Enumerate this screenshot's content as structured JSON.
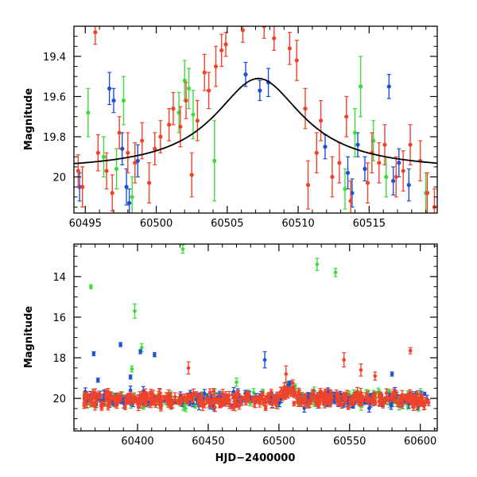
{
  "chart_data": [
    {
      "type": "scatter",
      "title": "",
      "xlabel": "",
      "ylabel": "Magnitude",
      "xlim": [
        60494.2,
        60519.8
      ],
      "ylim": [
        19.25,
        20.18
      ],
      "y_inverted": true,
      "xticks": [
        60495,
        60500,
        60505,
        60510,
        60515
      ],
      "xtick_labels": [
        "60495",
        "60500",
        "60505",
        "60510",
        "60515"
      ],
      "yticks": [
        19.4,
        19.6,
        19.8,
        20.0
      ],
      "ytick_labels": [
        "19.4",
        "19.6",
        "19.8",
        "20"
      ],
      "model_curve": {
        "color": "#000000",
        "peak_x": 60507.2,
        "peak_y": 19.51,
        "baseline_y": 19.97,
        "width": 3.8,
        "points": [
          {
            "x": 60494.2,
            "y": 19.947
          },
          {
            "x": 60495.5,
            "y": 19.935
          },
          {
            "x": 60497.0,
            "y": 19.914
          },
          {
            "x": 60498.5,
            "y": 19.884
          },
          {
            "x": 60500.0,
            "y": 19.839
          },
          {
            "x": 60501.5,
            "y": 19.778
          },
          {
            "x": 60503.0,
            "y": 19.703
          },
          {
            "x": 60504.5,
            "y": 19.617
          },
          {
            "x": 60506.0,
            "y": 19.545
          },
          {
            "x": 60507.2,
            "y": 19.51
          },
          {
            "x": 60508.5,
            "y": 19.53
          },
          {
            "x": 60510.0,
            "y": 19.61
          },
          {
            "x": 60511.5,
            "y": 19.704
          },
          {
            "x": 60513.0,
            "y": 19.783
          },
          {
            "x": 60514.5,
            "y": 19.843
          },
          {
            "x": 60516.0,
            "y": 19.886
          },
          {
            "x": 60517.5,
            "y": 19.915
          },
          {
            "x": 60519.8,
            "y": 19.945
          }
        ]
      },
      "series": [
        {
          "color": "#1f4fd6",
          "points": [
            {
              "x": 60494.6,
              "y": 20.05,
              "err": 0.07
            },
            {
              "x": 60496.7,
              "y": 19.56,
              "err": 0.08
            },
            {
              "x": 60497.0,
              "y": 19.62,
              "err": 0.06
            },
            {
              "x": 60497.6,
              "y": 19.86,
              "err": 0.08
            },
            {
              "x": 60497.9,
              "y": 20.05,
              "err": 0.09
            },
            {
              "x": 60498.1,
              "y": 20.13,
              "err": 0.07
            },
            {
              "x": 60498.7,
              "y": 19.92,
              "err": 0.08
            },
            {
              "x": 60506.3,
              "y": 19.49,
              "err": 0.06
            },
            {
              "x": 60507.3,
              "y": 19.57,
              "err": 0.05
            },
            {
              "x": 60507.9,
              "y": 19.53,
              "err": 0.07
            },
            {
              "x": 60511.9,
              "y": 19.85,
              "err": 0.06
            },
            {
              "x": 60513.5,
              "y": 19.98,
              "err": 0.08
            },
            {
              "x": 60513.8,
              "y": 20.08,
              "err": 0.07
            },
            {
              "x": 60514.2,
              "y": 19.84,
              "err": 0.06
            },
            {
              "x": 60514.7,
              "y": 19.96,
              "err": 0.06
            },
            {
              "x": 60516.4,
              "y": 19.55,
              "err": 0.06
            },
            {
              "x": 60516.7,
              "y": 20.02,
              "err": 0.07
            },
            {
              "x": 60517.8,
              "y": 20.04,
              "err": 0.08
            },
            {
              "x": 60517.1,
              "y": 19.93,
              "err": 0.07
            }
          ]
        },
        {
          "color": "#3ddc3d",
          "points": [
            {
              "x": 60495.2,
              "y": 19.68,
              "err": 0.12
            },
            {
              "x": 60496.3,
              "y": 19.9,
              "err": 0.1
            },
            {
              "x": 60497.2,
              "y": 19.96,
              "err": 0.1
            },
            {
              "x": 60497.7,
              "y": 19.62,
              "err": 0.12
            },
            {
              "x": 60498.3,
              "y": 20.1,
              "err": 0.1
            },
            {
              "x": 60501.6,
              "y": 19.68,
              "err": 0.1
            },
            {
              "x": 60502.0,
              "y": 19.52,
              "err": 0.1
            },
            {
              "x": 60502.3,
              "y": 19.56,
              "err": 0.1
            },
            {
              "x": 60502.6,
              "y": 19.69,
              "err": 0.12
            },
            {
              "x": 60504.1,
              "y": 19.92,
              "err": 0.2
            },
            {
              "x": 60513.3,
              "y": 20.06,
              "err": 0.1
            },
            {
              "x": 60514.0,
              "y": 19.78,
              "err": 0.12
            },
            {
              "x": 60514.4,
              "y": 19.55,
              "err": 0.15
            },
            {
              "x": 60515.3,
              "y": 19.82,
              "err": 0.1
            },
            {
              "x": 60516.2,
              "y": 20.0,
              "err": 0.1
            },
            {
              "x": 60519.0,
              "y": 20.08,
              "err": 0.1
            }
          ]
        },
        {
          "color": "#f0432a",
          "points": [
            {
              "x": 60494.5,
              "y": 19.97,
              "err": 0.08
            },
            {
              "x": 60494.8,
              "y": 20.05,
              "err": 0.1
            },
            {
              "x": 60495.7,
              "y": 19.28,
              "err": 0.06
            },
            {
              "x": 60495.9,
              "y": 19.88,
              "err": 0.09
            },
            {
              "x": 60496.5,
              "y": 19.97,
              "err": 0.09
            },
            {
              "x": 60496.9,
              "y": 20.08,
              "err": 0.09
            },
            {
              "x": 60497.4,
              "y": 19.78,
              "err": 0.08
            },
            {
              "x": 60498.0,
              "y": 19.88,
              "err": 0.1
            },
            {
              "x": 60498.5,
              "y": 19.93,
              "err": 0.1
            },
            {
              "x": 60499.0,
              "y": 19.82,
              "err": 0.09
            },
            {
              "x": 60499.5,
              "y": 20.03,
              "err": 0.1
            },
            {
              "x": 60499.9,
              "y": 19.86,
              "err": 0.08
            },
            {
              "x": 60500.3,
              "y": 19.8,
              "err": 0.08
            },
            {
              "x": 60500.9,
              "y": 19.74,
              "err": 0.08
            },
            {
              "x": 60501.2,
              "y": 19.66,
              "err": 0.08
            },
            {
              "x": 60501.7,
              "y": 19.75,
              "err": 0.1
            },
            {
              "x": 60502.1,
              "y": 19.62,
              "err": 0.09
            },
            {
              "x": 60502.5,
              "y": 19.99,
              "err": 0.11
            },
            {
              "x": 60502.9,
              "y": 19.72,
              "err": 0.1
            },
            {
              "x": 60503.4,
              "y": 19.48,
              "err": 0.09
            },
            {
              "x": 60503.7,
              "y": 19.57,
              "err": 0.09
            },
            {
              "x": 60504.2,
              "y": 19.45,
              "err": 0.1
            },
            {
              "x": 60504.6,
              "y": 19.37,
              "err": 0.08
            },
            {
              "x": 60504.9,
              "y": 19.34,
              "err": 0.06
            },
            {
              "x": 60506.1,
              "y": 19.27,
              "err": 0.06
            },
            {
              "x": 60507.6,
              "y": 19.25,
              "err": 0.06
            },
            {
              "x": 60508.3,
              "y": 19.31,
              "err": 0.06
            },
            {
              "x": 60509.4,
              "y": 19.36,
              "err": 0.08
            },
            {
              "x": 60509.9,
              "y": 19.42,
              "err": 0.1
            },
            {
              "x": 60510.5,
              "y": 19.66,
              "err": 0.1
            },
            {
              "x": 60510.7,
              "y": 20.04,
              "err": 0.12
            },
            {
              "x": 60511.3,
              "y": 19.88,
              "err": 0.1
            },
            {
              "x": 60511.6,
              "y": 19.72,
              "err": 0.1
            },
            {
              "x": 60512.4,
              "y": 20.0,
              "err": 0.1
            },
            {
              "x": 60512.9,
              "y": 19.93,
              "err": 0.1
            },
            {
              "x": 60513.4,
              "y": 19.7,
              "err": 0.1
            },
            {
              "x": 60513.7,
              "y": 20.12,
              "err": 0.1
            },
            {
              "x": 60514.9,
              "y": 20.03,
              "err": 0.1
            },
            {
              "x": 60515.2,
              "y": 19.88,
              "err": 0.1
            },
            {
              "x": 60515.7,
              "y": 19.93,
              "err": 0.1
            },
            {
              "x": 60516.1,
              "y": 19.84,
              "err": 0.1
            },
            {
              "x": 60516.9,
              "y": 20.0,
              "err": 0.1
            },
            {
              "x": 60517.4,
              "y": 19.97,
              "err": 0.1
            },
            {
              "x": 60517.9,
              "y": 19.84,
              "err": 0.1
            },
            {
              "x": 60518.6,
              "y": 19.92,
              "err": 0.1
            },
            {
              "x": 60519.1,
              "y": 20.08,
              "err": 0.1
            },
            {
              "x": 60519.6,
              "y": 20.15,
              "err": 0.09
            }
          ]
        }
      ]
    },
    {
      "type": "scatter",
      "title": "",
      "xlabel": "HJD−2400000",
      "ylabel": "Magnitude",
      "xlim": [
        60355,
        60612
      ],
      "ylim": [
        12.4,
        21.6
      ],
      "y_inverted": true,
      "xticks": [
        60400,
        60450,
        60500,
        60550,
        60600
      ],
      "xtick_labels": [
        "60400",
        "60450",
        "60500",
        "60550",
        "60600"
      ],
      "yticks": [
        14,
        16,
        18,
        20
      ],
      "ytick_labels": [
        "14",
        "16",
        "18",
        "20"
      ],
      "baseline_mag": 20.05,
      "series": [
        {
          "color": "#1f4fd6",
          "outliers": [
            {
              "x": 60369,
              "y": 17.8,
              "err": 0.1
            },
            {
              "x": 60388,
              "y": 17.35,
              "err": 0.1
            },
            {
              "x": 60402,
              "y": 17.7,
              "err": 0.1
            },
            {
              "x": 60412,
              "y": 17.85,
              "err": 0.1
            },
            {
              "x": 60490,
              "y": 18.1,
              "err": 0.4
            },
            {
              "x": 60395,
              "y": 18.95,
              "err": 0.1
            },
            {
              "x": 60580,
              "y": 18.8,
              "err": 0.1
            },
            {
              "x": 60372,
              "y": 19.1,
              "err": 0.1
            }
          ]
        },
        {
          "color": "#3ddc3d",
          "outliers": [
            {
              "x": 60367,
              "y": 14.5,
              "err": 0.1
            },
            {
              "x": 60398,
              "y": 15.7,
              "err": 0.35
            },
            {
              "x": 60403,
              "y": 17.5,
              "err": 0.2
            },
            {
              "x": 60432,
              "y": 12.65,
              "err": 0.2
            },
            {
              "x": 60527,
              "y": 13.4,
              "err": 0.3
            },
            {
              "x": 60540,
              "y": 13.8,
              "err": 0.2
            },
            {
              "x": 60396,
              "y": 18.55,
              "err": 0.15
            },
            {
              "x": 60470,
              "y": 19.2,
              "err": 0.2
            }
          ]
        },
        {
          "color": "#f0432a",
          "outliers": [
            {
              "x": 60436,
              "y": 18.5,
              "err": 0.3
            },
            {
              "x": 60505,
              "y": 18.8,
              "err": 0.4
            },
            {
              "x": 60546,
              "y": 18.1,
              "err": 0.35
            },
            {
              "x": 60558,
              "y": 18.6,
              "err": 0.3
            },
            {
              "x": 60568,
              "y": 18.9,
              "err": 0.2
            },
            {
              "x": 60593,
              "y": 17.65,
              "err": 0.15
            }
          ]
        }
      ]
    }
  ]
}
